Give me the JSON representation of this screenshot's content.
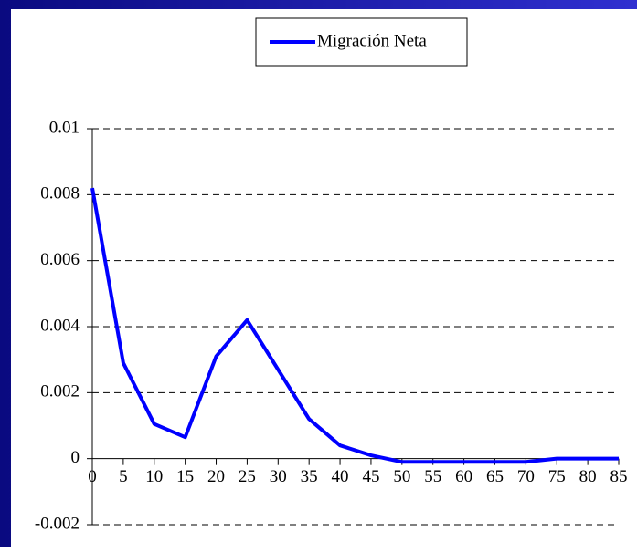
{
  "chart_data": {
    "type": "line",
    "x": [
      0,
      5,
      10,
      15,
      20,
      25,
      30,
      35,
      40,
      45,
      50,
      55,
      60,
      65,
      70,
      75,
      80,
      85
    ],
    "series": [
      {
        "name": "Migración Neta",
        "color": "#0000ff",
        "values": [
          0.0082,
          0.0029,
          0.00105,
          0.00065,
          0.0031,
          0.0042,
          0.0027,
          0.0012,
          0.0004,
          0.0001,
          -0.0001,
          -0.0001,
          -0.0001,
          -0.0001,
          -0.0001,
          0,
          0,
          0
        ]
      }
    ],
    "xlim": [
      0,
      85
    ],
    "xticks": [
      0,
      5,
      10,
      15,
      20,
      25,
      30,
      35,
      40,
      45,
      50,
      55,
      60,
      65,
      70,
      75,
      80,
      85
    ],
    "ylim": [
      -0.002,
      0.01
    ],
    "yticks": [
      -0.002,
      0,
      0.002,
      0.004,
      0.006,
      0.008,
      0.01
    ],
    "grid": true,
    "legend": "top"
  }
}
